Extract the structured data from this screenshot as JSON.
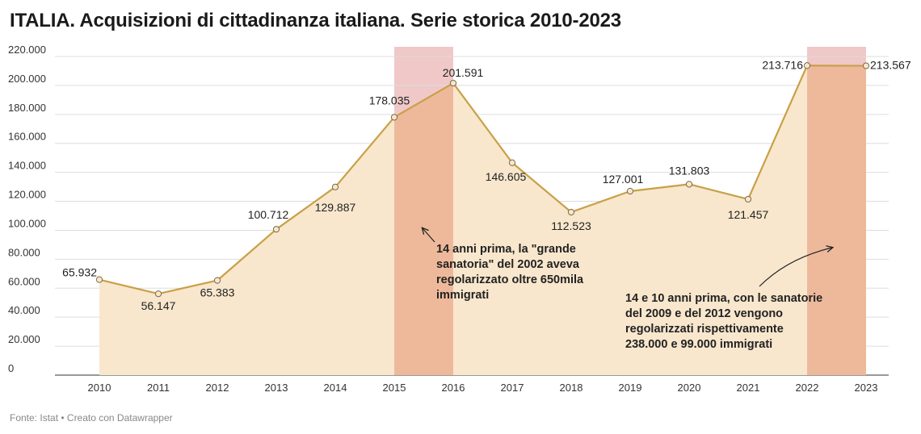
{
  "title": "ITALIA. Acquisizioni di cittadinanza italiana. Serie storica 2010-2023",
  "footer": "Fonte: Istat • Creato con Datawrapper",
  "colors": {
    "line": "#c9a047",
    "area": "#f8e7cd",
    "band_strong": "#eeb99b",
    "band_light": "#f0c8c8",
    "grid": "#dddddd"
  },
  "chart_data": {
    "type": "area",
    "title": "ITALIA. Acquisizioni di cittadinanza italiana. Serie storica 2010-2023",
    "xlabel": "",
    "ylabel": "",
    "categories": [
      "2010",
      "2011",
      "2012",
      "2013",
      "2014",
      "2015",
      "2016",
      "2017",
      "2018",
      "2019",
      "2020",
      "2021",
      "2022",
      "2023"
    ],
    "series": [
      {
        "values": [
          65932,
          56147,
          65383,
          100712,
          129887,
          178035,
          201591,
          146605,
          112523,
          127001,
          131803,
          121457,
          213716,
          213567
        ],
        "labels": [
          "65.932",
          "56.147",
          "65.383",
          "100.712",
          "129.887",
          "178.035",
          "201.591",
          "146.605",
          "112.523",
          "127.001",
          "131.803",
          "121.457",
          "213.716",
          "213.567"
        ]
      }
    ],
    "ylim": [
      0,
      220000
    ],
    "yticks": [
      0,
      20000,
      40000,
      60000,
      80000,
      100000,
      120000,
      140000,
      160000,
      180000,
      200000,
      220000
    ],
    "ytick_labels": [
      "0",
      "20.000",
      "40.000",
      "60.000",
      "80.000",
      "100.000",
      "120.000",
      "140.000",
      "160.000",
      "180.000",
      "200.000",
      "220.000"
    ],
    "grid": true,
    "legend": "none",
    "highlight_ranges": [
      {
        "from": "2015",
        "to": "2016"
      },
      {
        "from": "2022",
        "to": "2023"
      }
    ],
    "annotations": [
      {
        "lines": [
          "14 anni prima, la \"grande",
          "sanatoria\" del 2002 aveva",
          "regolarizzato oltre 650mila",
          "immigrati"
        ]
      },
      {
        "lines": [
          "14 e 10 anni prima, con le sanatorie",
          "del 2009 e del 2012 vengono",
          "regolarizzati rispettivamente",
          "238.000 e 99.000 immigrati"
        ]
      }
    ]
  }
}
